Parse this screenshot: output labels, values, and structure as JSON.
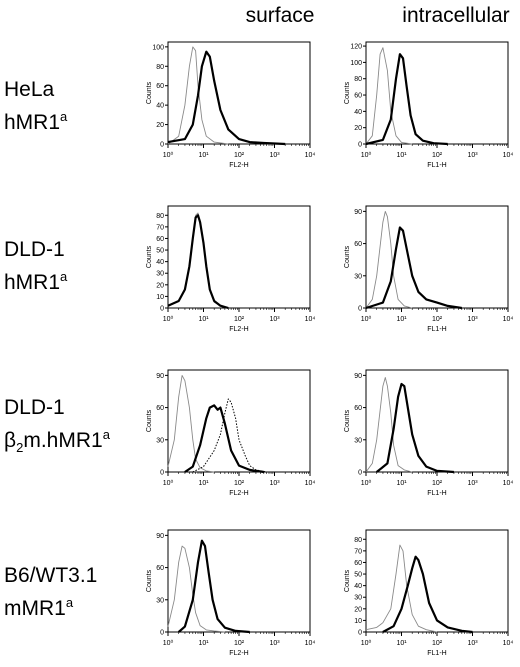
{
  "columns": [
    "surface",
    "intracellular"
  ],
  "rows": [
    {
      "line1": "HeLa",
      "line2_prefix": "hMR1",
      "line2_sup": "a",
      "line2_sub": ""
    },
    {
      "line1": "DLD-1",
      "line2_prefix": "hMR1",
      "line2_sup": "a",
      "line2_sub": ""
    },
    {
      "line1": "DLD-1",
      "line2_prefix": "β",
      "line2_sub": "2",
      "line2_rest": "m.hMR1",
      "line2_sup": "a"
    },
    {
      "line1": "B6/WT3.1",
      "line2_prefix": "mMR1",
      "line2_sup": "a",
      "line2_sub": ""
    }
  ],
  "chart_data": [
    {
      "type": "line",
      "row": 0,
      "column": "surface",
      "xlabel": "FL2-H",
      "ylabel": "Counts",
      "xscale": "log",
      "xlim": [
        1,
        10000
      ],
      "ylim": [
        0,
        105
      ],
      "yticks": [
        0,
        20,
        40,
        60,
        80,
        100
      ],
      "xticks": [
        "10⁰",
        "10¹",
        "10²",
        "10³",
        "10⁴"
      ],
      "series": [
        {
          "style": "thin",
          "x": [
            1,
            2,
            3,
            4,
            5,
            6,
            7,
            9,
            12,
            20,
            50
          ],
          "y": [
            0,
            8,
            40,
            80,
            100,
            96,
            60,
            25,
            8,
            2,
            0
          ]
        },
        {
          "style": "thick",
          "x": [
            1,
            3,
            5,
            7,
            9,
            12,
            15,
            20,
            30,
            50,
            100,
            200,
            500,
            2000
          ],
          "y": [
            2,
            5,
            20,
            50,
            80,
            95,
            90,
            65,
            35,
            15,
            5,
            2,
            1,
            0
          ]
        }
      ]
    },
    {
      "type": "line",
      "row": 0,
      "column": "intracellular",
      "xlabel": "FL1-H",
      "ylabel": "Counts",
      "xscale": "log",
      "xlim": [
        1,
        10000
      ],
      "ylim": [
        0,
        125
      ],
      "yticks": [
        0,
        20,
        40,
        60,
        80,
        100,
        120
      ],
      "xticks": [
        "10⁰",
        "10¹",
        "10²",
        "10³",
        "10⁴"
      ],
      "series": [
        {
          "style": "thin",
          "x": [
            1,
            1.5,
            2,
            2.5,
            3,
            4,
            5,
            7,
            10,
            20
          ],
          "y": [
            0,
            10,
            60,
            110,
            118,
            90,
            40,
            10,
            2,
            0
          ]
        },
        {
          "style": "thick",
          "x": [
            1,
            3,
            5,
            7,
            9,
            11,
            14,
            18,
            25,
            40,
            80,
            200
          ],
          "y": [
            0,
            5,
            30,
            80,
            110,
            105,
            70,
            35,
            12,
            4,
            1,
            0
          ]
        }
      ]
    },
    {
      "type": "line",
      "row": 1,
      "column": "surface",
      "xlabel": "FL2-H",
      "ylabel": "Counts",
      "xscale": "log",
      "xlim": [
        1,
        10000
      ],
      "ylim": [
        0,
        88
      ],
      "yticks": [
        0,
        10,
        20,
        30,
        40,
        50,
        60,
        70,
        80
      ],
      "xticks": [
        "10⁰",
        "10¹",
        "10²",
        "10³",
        "10⁴"
      ],
      "series": [
        {
          "style": "thin",
          "x": [
            1,
            2,
            3,
            4,
            5,
            6,
            7,
            8,
            10,
            12,
            15,
            20,
            30,
            50
          ],
          "y": [
            2,
            6,
            15,
            35,
            62,
            80,
            82,
            75,
            55,
            35,
            15,
            5,
            2,
            0
          ]
        },
        {
          "style": "thick",
          "x": [
            1,
            2,
            3,
            4,
            5,
            6,
            7,
            8,
            10,
            12,
            15,
            20,
            30,
            50
          ],
          "y": [
            2,
            6,
            16,
            36,
            60,
            78,
            80,
            74,
            56,
            36,
            16,
            6,
            2,
            0
          ]
        }
      ]
    },
    {
      "type": "line",
      "row": 1,
      "column": "intracellular",
      "xlabel": "FL1-H",
      "ylabel": "Counts",
      "xscale": "log",
      "xlim": [
        1,
        10000
      ],
      "ylim": [
        0,
        95
      ],
      "yticks": [
        0,
        30,
        60,
        90
      ],
      "xticks": [
        "10⁰",
        "10¹",
        "10²",
        "10³",
        "10⁴"
      ],
      "series": [
        {
          "style": "thin",
          "x": [
            1,
            1.5,
            2,
            3,
            3.5,
            4,
            5,
            6,
            8,
            12,
            20
          ],
          "y": [
            0,
            8,
            30,
            80,
            90,
            85,
            60,
            30,
            8,
            2,
            0
          ]
        },
        {
          "style": "thick",
          "x": [
            1,
            3,
            5,
            7,
            9,
            11,
            15,
            20,
            30,
            50,
            100,
            200,
            500
          ],
          "y": [
            0,
            5,
            25,
            55,
            75,
            72,
            50,
            30,
            15,
            8,
            5,
            2,
            0
          ]
        }
      ]
    },
    {
      "type": "line",
      "row": 2,
      "column": "surface",
      "xlabel": "FL2-H",
      "ylabel": "Counts",
      "xscale": "log",
      "xlim": [
        1,
        10000
      ],
      "ylim": [
        0,
        95
      ],
      "yticks": [
        0,
        30,
        60,
        90
      ],
      "xticks": [
        "10⁰",
        "10¹",
        "10²",
        "10³",
        "10⁴"
      ],
      "series": [
        {
          "style": "thin",
          "x": [
            1,
            1.5,
            2,
            2.5,
            3,
            4,
            5,
            6,
            8,
            12,
            20
          ],
          "y": [
            5,
            30,
            70,
            90,
            85,
            60,
            30,
            12,
            4,
            1,
            0
          ]
        },
        {
          "style": "thick",
          "x": [
            3,
            5,
            8,
            12,
            15,
            20,
            25,
            30,
            40,
            60,
            100,
            200,
            500
          ],
          "y": [
            0,
            5,
            25,
            50,
            60,
            62,
            58,
            60,
            45,
            20,
            6,
            2,
            0
          ]
        },
        {
          "style": "dotted",
          "x": [
            5,
            10,
            20,
            30,
            40,
            50,
            60,
            80,
            100,
            150,
            200,
            300,
            600
          ],
          "y": [
            0,
            5,
            20,
            35,
            55,
            68,
            65,
            50,
            30,
            15,
            6,
            2,
            0
          ]
        }
      ]
    },
    {
      "type": "line",
      "row": 2,
      "column": "intracellular",
      "xlabel": "FL1-H",
      "ylabel": "Counts",
      "xscale": "log",
      "xlim": [
        1,
        10000
      ],
      "ylim": [
        0,
        95
      ],
      "yticks": [
        0,
        30,
        60,
        90
      ],
      "xticks": [
        "10⁰",
        "10¹",
        "10²",
        "10³",
        "10⁴"
      ],
      "series": [
        {
          "style": "thin",
          "x": [
            1,
            1.5,
            2,
            3,
            3.5,
            4,
            5,
            6,
            8,
            12,
            20
          ],
          "y": [
            0,
            8,
            30,
            80,
            88,
            80,
            55,
            25,
            6,
            2,
            0
          ]
        },
        {
          "style": "thick",
          "x": [
            2,
            4,
            6,
            8,
            10,
            12,
            15,
            20,
            30,
            50,
            100,
            300
          ],
          "y": [
            0,
            8,
            40,
            70,
            82,
            80,
            60,
            35,
            15,
            5,
            1,
            0
          ]
        }
      ]
    },
    {
      "type": "line",
      "row": 3,
      "column": "surface",
      "xlabel": "FL2-H",
      "ylabel": "Counts",
      "xscale": "log",
      "xlim": [
        1,
        10000
      ],
      "ylim": [
        0,
        95
      ],
      "yticks": [
        0,
        30,
        60,
        90
      ],
      "xticks": [
        "10⁰",
        "10¹",
        "10²",
        "10³",
        "10⁴"
      ],
      "series": [
        {
          "style": "thin",
          "x": [
            1,
            1.5,
            2,
            2.5,
            3,
            4,
            5,
            6,
            8,
            12,
            20,
            40
          ],
          "y": [
            5,
            30,
            65,
            80,
            78,
            60,
            35,
            18,
            6,
            2,
            1,
            0
          ]
        },
        {
          "style": "thick",
          "x": [
            2,
            3,
            5,
            7,
            9,
            11,
            14,
            18,
            25,
            40,
            80,
            200
          ],
          "y": [
            0,
            5,
            30,
            65,
            85,
            80,
            55,
            30,
            12,
            4,
            1,
            0
          ]
        }
      ]
    },
    {
      "type": "line",
      "row": 3,
      "column": "intracellular",
      "xlabel": "FL1-H",
      "ylabel": "Counts",
      "xscale": "log",
      "xlim": [
        1,
        10000
      ],
      "ylim": [
        0,
        88
      ],
      "yticks": [
        0,
        10,
        20,
        30,
        40,
        50,
        60,
        70,
        80
      ],
      "xticks": [
        "10⁰",
        "10¹",
        "10²",
        "10³",
        "10⁴"
      ],
      "series": [
        {
          "style": "thin",
          "x": [
            1,
            2,
            3,
            5,
            7,
            9,
            11,
            14,
            20,
            30,
            50,
            100
          ],
          "y": [
            2,
            4,
            8,
            20,
            50,
            75,
            70,
            40,
            15,
            5,
            2,
            0
          ]
        },
        {
          "style": "thick",
          "x": [
            3,
            6,
            10,
            15,
            20,
            25,
            30,
            40,
            60,
            100,
            200,
            500,
            1000
          ],
          "y": [
            0,
            5,
            20,
            40,
            55,
            65,
            62,
            50,
            25,
            10,
            4,
            1,
            0
          ]
        }
      ]
    }
  ]
}
